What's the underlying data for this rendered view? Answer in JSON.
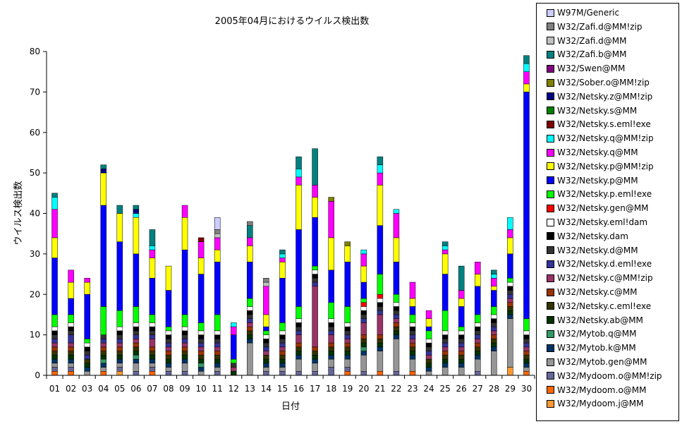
{
  "chart_data": {
    "type": "bar",
    "stacked": true,
    "title": "2005年04月におけるウイルス検出数",
    "xlabel": "日付",
    "ylabel": "ウイルス検出数",
    "ylim": [
      0,
      80
    ],
    "yticks": [
      0,
      10,
      20,
      30,
      40,
      50,
      60,
      70,
      80
    ],
    "grid": false,
    "legend_position": "right",
    "categories": [
      "01",
      "02",
      "03",
      "04",
      "05",
      "06",
      "07",
      "08",
      "09",
      "10",
      "11",
      "12",
      "13",
      "14",
      "15",
      "16",
      "17",
      "18",
      "19",
      "20",
      "21",
      "22",
      "23",
      "24",
      "25",
      "26",
      "27",
      "28",
      "29",
      "30"
    ],
    "series": [
      {
        "name": "W32/Mydoom.j@MM",
        "color": "#ff9933",
        "values": [
          0,
          0,
          0,
          0,
          1,
          0,
          0,
          0,
          0,
          0,
          0,
          0,
          0,
          0,
          0,
          0,
          0,
          0,
          0,
          0,
          0,
          0,
          0,
          0,
          0,
          0,
          0,
          0,
          2,
          0
        ]
      },
      {
        "name": "W32/Mydoom.o@MM",
        "color": "#ff6600",
        "values": [
          1,
          1,
          0,
          1,
          0,
          0,
          1,
          0,
          0,
          0,
          0,
          0,
          0,
          0,
          0,
          0,
          0,
          0,
          1,
          0,
          1,
          0,
          1,
          0,
          0,
          0,
          0,
          0,
          0,
          1
        ]
      },
      {
        "name": "W32/Mydoom.o@MM!zip",
        "color": "#666699",
        "values": [
          1,
          1,
          0,
          0,
          1,
          1,
          1,
          1,
          1,
          0,
          1,
          0,
          0,
          1,
          1,
          1,
          1,
          2,
          1,
          1,
          0,
          1,
          0,
          0,
          0,
          0,
          1,
          0,
          0,
          0
        ]
      },
      {
        "name": "W32/Mytob.gen@MM",
        "color": "#969696",
        "values": [
          1,
          1,
          1,
          1,
          1,
          2,
          1,
          1,
          2,
          1,
          1,
          0,
          8,
          1,
          1,
          3,
          2,
          2,
          2,
          4,
          5,
          8,
          3,
          1,
          2,
          2,
          3,
          6,
          12,
          1
        ]
      },
      {
        "name": "W32/Mytob.k@MM",
        "color": "#003366",
        "values": [
          1,
          1,
          1,
          1,
          1,
          1,
          1,
          1,
          1,
          1,
          1,
          0,
          1,
          1,
          1,
          1,
          1,
          1,
          1,
          1,
          1,
          1,
          1,
          1,
          1,
          1,
          1,
          1,
          1,
          1
        ]
      },
      {
        "name": "W32/Mytob.q@MM",
        "color": "#339966",
        "values": [
          0,
          0,
          0,
          1,
          0,
          1,
          0,
          0,
          0,
          1,
          0,
          0,
          0,
          0,
          0,
          0,
          0,
          0,
          0,
          1,
          0,
          0,
          0,
          0,
          0,
          0,
          0,
          0,
          0,
          0
        ]
      },
      {
        "name": "W32/Netsky.ab@MM",
        "color": "#003300",
        "values": [
          1,
          1,
          1,
          1,
          1,
          1,
          1,
          1,
          1,
          1,
          1,
          1,
          1,
          1,
          1,
          1,
          1,
          1,
          1,
          1,
          1,
          1,
          1,
          1,
          1,
          1,
          1,
          1,
          1,
          1
        ]
      },
      {
        "name": "W32/Netsky.c.eml!exe",
        "color": "#333300",
        "values": [
          1,
          1,
          1,
          1,
          1,
          1,
          1,
          1,
          1,
          1,
          1,
          0,
          1,
          1,
          1,
          1,
          1,
          1,
          1,
          1,
          1,
          1,
          1,
          1,
          1,
          1,
          1,
          1,
          1,
          1
        ]
      },
      {
        "name": "W32/Netsky.c@MM",
        "color": "#993300",
        "values": [
          1,
          1,
          0,
          1,
          1,
          1,
          1,
          1,
          1,
          1,
          1,
          0,
          1,
          0,
          1,
          1,
          1,
          1,
          1,
          1,
          1,
          1,
          1,
          0,
          1,
          1,
          1,
          1,
          1,
          1
        ]
      },
      {
        "name": "W32/Netsky.c@MM!zip",
        "color": "#993366",
        "values": [
          1,
          1,
          0,
          1,
          1,
          1,
          2,
          1,
          1,
          1,
          1,
          1,
          1,
          1,
          1,
          2,
          15,
          2,
          1,
          3,
          5,
          1,
          1,
          1,
          1,
          1,
          1,
          1,
          1,
          1
        ]
      },
      {
        "name": "W32/Netsky.d.eml!exe",
        "color": "#333399",
        "values": [
          1,
          2,
          1,
          1,
          1,
          1,
          1,
          1,
          1,
          1,
          1,
          0,
          1,
          1,
          1,
          1,
          1,
          1,
          1,
          1,
          1,
          1,
          1,
          1,
          1,
          1,
          1,
          1,
          1,
          1
        ]
      },
      {
        "name": "W32/Netsky.d@MM",
        "color": "#333333",
        "values": [
          1,
          1,
          1,
          1,
          1,
          1,
          1,
          1,
          1,
          1,
          1,
          1,
          1,
          1,
          1,
          1,
          1,
          1,
          1,
          1,
          1,
          1,
          1,
          1,
          1,
          1,
          1,
          1,
          1,
          1
        ]
      },
      {
        "name": "W32/Netsky.dam",
        "color": "#000000",
        "values": [
          1,
          1,
          1,
          0,
          1,
          1,
          1,
          1,
          1,
          1,
          1,
          0,
          1,
          1,
          1,
          1,
          1,
          1,
          1,
          1,
          1,
          1,
          1,
          1,
          1,
          1,
          1,
          1,
          1,
          1
        ]
      },
      {
        "name": "W32/Netsky.eml!dam",
        "color": "#ffffff",
        "values": [
          1,
          1,
          1,
          0,
          1,
          1,
          1,
          1,
          1,
          1,
          1,
          0,
          1,
          1,
          1,
          1,
          1,
          1,
          1,
          1,
          1,
          1,
          1,
          1,
          1,
          1,
          1,
          1,
          1,
          1
        ]
      },
      {
        "name": "W32/Netsky.gen@MM",
        "color": "#ff0000",
        "values": [
          0,
          0,
          0,
          0,
          0,
          0,
          0,
          0,
          0,
          0,
          0,
          0,
          0,
          0,
          0,
          0,
          0,
          0,
          0,
          1,
          1,
          0,
          0,
          0,
          0,
          0,
          0,
          0,
          0,
          0
        ]
      },
      {
        "name": "W32/Netsky.p.eml!exe",
        "color": "#00ff00",
        "values": [
          3,
          2,
          1,
          7,
          4,
          4,
          2,
          1,
          3,
          2,
          4,
          1,
          2,
          1,
          2,
          3,
          1,
          4,
          4,
          1,
          5,
          2,
          2,
          2,
          5,
          1,
          2,
          2,
          1,
          3
        ]
      },
      {
        "name": "W32/Netsky.p@MM",
        "color": "#0000ff",
        "values": [
          14,
          4,
          11,
          25,
          17,
          13,
          9,
          9,
          16,
          12,
          13,
          6,
          9,
          1,
          11,
          19,
          12,
          8,
          11,
          4,
          12,
          8,
          2,
          1,
          9,
          5,
          7,
          4,
          6,
          56
        ]
      },
      {
        "name": "W32/Netsky.p@MM!zip",
        "color": "#ffff00",
        "values": [
          5,
          4,
          3,
          8,
          7,
          9,
          5,
          6,
          8,
          4,
          3,
          0,
          4,
          3,
          4,
          11,
          5,
          8,
          4,
          4,
          10,
          6,
          2,
          2,
          5,
          2,
          3,
          1,
          4,
          2
        ]
      },
      {
        "name": "W32/Netsky.q@MM",
        "color": "#ff00ff",
        "values": [
          7,
          3,
          1,
          0,
          0,
          0,
          2,
          0,
          3,
          4,
          3,
          2,
          2,
          7,
          1,
          2,
          3,
          9,
          0,
          3,
          3,
          6,
          4,
          2,
          1,
          2,
          3,
          2,
          2,
          3
        ]
      },
      {
        "name": "W32/Netsky.q@MM!zip",
        "color": "#00ffff",
        "values": [
          3,
          0,
          0,
          0,
          0,
          1,
          1,
          0,
          0,
          0,
          0,
          1,
          0,
          0,
          1,
          2,
          0,
          0,
          0,
          1,
          2,
          1,
          0,
          0,
          1,
          0,
          0,
          1,
          3,
          2
        ]
      },
      {
        "name": "W32/Netsky.s.eml!exe",
        "color": "#800000",
        "values": [
          0,
          0,
          0,
          0,
          0,
          0,
          0,
          0,
          0,
          1,
          0,
          0,
          0,
          0,
          0,
          0,
          0,
          0,
          0,
          0,
          0,
          0,
          0,
          0,
          0,
          0,
          0,
          0,
          0,
          0
        ]
      },
      {
        "name": "W32/Netsky.s@MM",
        "color": "#008000",
        "values": [
          0,
          0,
          0,
          0,
          0,
          0,
          0,
          0,
          0,
          0,
          0,
          0,
          0,
          0,
          0,
          0,
          0,
          0,
          0,
          0,
          0,
          0,
          0,
          0,
          0,
          0,
          0,
          0,
          0,
          0
        ]
      },
      {
        "name": "W32/Netsky.z@MM!zip",
        "color": "#000080",
        "values": [
          0,
          0,
          0,
          1,
          0,
          1,
          0,
          0,
          0,
          0,
          0,
          0,
          0,
          0,
          0,
          0,
          0,
          0,
          0,
          0,
          0,
          0,
          0,
          0,
          0,
          0,
          0,
          0,
          0,
          0
        ]
      },
      {
        "name": "W32/Sober.o@MM!zip",
        "color": "#808000",
        "values": [
          0,
          0,
          0,
          0,
          0,
          0,
          0,
          0,
          0,
          0,
          0,
          0,
          0,
          0,
          0,
          0,
          0,
          1,
          1,
          0,
          0,
          0,
          0,
          0,
          0,
          0,
          0,
          0,
          0,
          0
        ]
      },
      {
        "name": "W32/Swen@MM",
        "color": "#800080",
        "values": [
          0,
          0,
          0,
          0,
          0,
          0,
          0,
          0,
          0,
          0,
          0,
          0,
          0,
          0,
          0,
          0,
          0,
          0,
          0,
          0,
          0,
          0,
          0,
          0,
          0,
          0,
          0,
          0,
          0,
          0
        ]
      },
      {
        "name": "W32/Zafi.b@MM",
        "color": "#008080",
        "values": [
          1,
          0,
          0,
          1,
          2,
          1,
          4,
          0,
          0,
          0,
          0,
          0,
          3,
          0,
          1,
          3,
          9,
          0,
          0,
          0,
          2,
          0,
          0,
          0,
          1,
          6,
          0,
          1,
          0,
          2
        ]
      },
      {
        "name": "W32/Zafi.d@MM",
        "color": "#c0c0c0",
        "values": [
          0,
          0,
          0,
          0,
          0,
          0,
          0,
          0,
          0,
          0,
          1,
          0,
          0,
          1,
          0,
          0,
          0,
          0,
          0,
          0,
          0,
          0,
          0,
          0,
          0,
          0,
          0,
          0,
          0,
          0
        ]
      },
      {
        "name": "W32/Zafi.d@MM!zip",
        "color": "#808080",
        "values": [
          0,
          0,
          0,
          0,
          0,
          0,
          0,
          0,
          0,
          0,
          1,
          0,
          1,
          1,
          0,
          0,
          0,
          0,
          0,
          0,
          0,
          0,
          0,
          0,
          0,
          0,
          0,
          0,
          0,
          0
        ]
      },
      {
        "name": "W97M/Generic",
        "color": "#ccccff",
        "values": [
          0,
          0,
          0,
          0,
          0,
          0,
          0,
          0,
          0,
          0,
          3,
          0,
          0,
          0,
          0,
          0,
          0,
          0,
          0,
          0,
          0,
          0,
          0,
          0,
          0,
          0,
          0,
          0,
          0,
          0
        ]
      }
    ],
    "legend_entries_visible": [
      "W97M/Generic",
      "W32/Zafi.d@MM!zip",
      "W32/Zafi.d@MM",
      "W32/Zafi.b@MM",
      "W32/Swen@MM",
      "W32/Sober.o@MM!zip",
      "W32/Netsky.z@MM!zip",
      "W32/Netsky.s@MM",
      "W32/Netsky.s.eml!exe",
      "W32/Netsky.q@MM!zip",
      "W32/Netsky.q@MM",
      "W32/Netsky.p@MM!zip",
      "W32/Netsky.p@MM",
      "W32/Netsky.p.eml!exe",
      "W32/Netsky.gen@MM",
      "W32/Netsky.eml!dam",
      "W32/Netsky.dam",
      "W32/Netsky.d@MM",
      "W32/Netsky.d.eml!exe",
      "W32/Netsky.c@MM!zip",
      "W32/Netsky.c@MM",
      "W32/Netsky.c.eml!exe",
      "W32/Netsky.ab@MM",
      "W32/Mytob.q@MM",
      "W32/Mytob.k@MM",
      "W32/Mytob.gen@MM",
      "W32/Mydoom.o@MM!zip",
      "W32/Mydoom.o@MM",
      "W32/Mydoom.j@MM"
    ]
  }
}
